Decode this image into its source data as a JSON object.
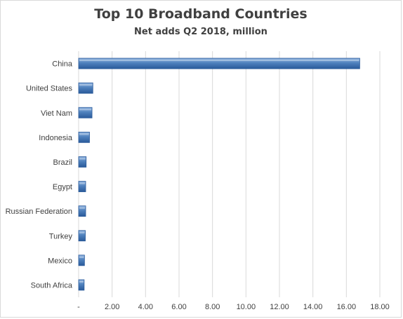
{
  "chart_data": {
    "type": "bar",
    "orientation": "horizontal",
    "title": "Top 10 Broadband  Countries",
    "subtitle": "Net adds Q2 2018, million",
    "categories": [
      "China",
      "United States",
      "Viet Nam",
      "Indonesia",
      "Brazil",
      "Egypt",
      "Russian Federation",
      "Turkey",
      "Mexico",
      "South Africa"
    ],
    "values": [
      16.8,
      0.85,
      0.8,
      0.65,
      0.45,
      0.42,
      0.42,
      0.4,
      0.35,
      0.33
    ],
    "xlim": [
      0,
      18
    ],
    "x_ticks": [
      0,
      2,
      4,
      6,
      8,
      10,
      12,
      14,
      16,
      18
    ],
    "x_tick_labels": [
      "-",
      "2.00",
      "4.00",
      "6.00",
      "8.00",
      "10.00",
      "12.00",
      "14.00",
      "16.00",
      "18.00"
    ],
    "grid": true,
    "legend": "none",
    "bar_color": "#4f81bd",
    "bar_color_dark": "#2a5a9a",
    "bar_color_light": "#8fb3e0",
    "grid_color": "#d9d9d9"
  }
}
